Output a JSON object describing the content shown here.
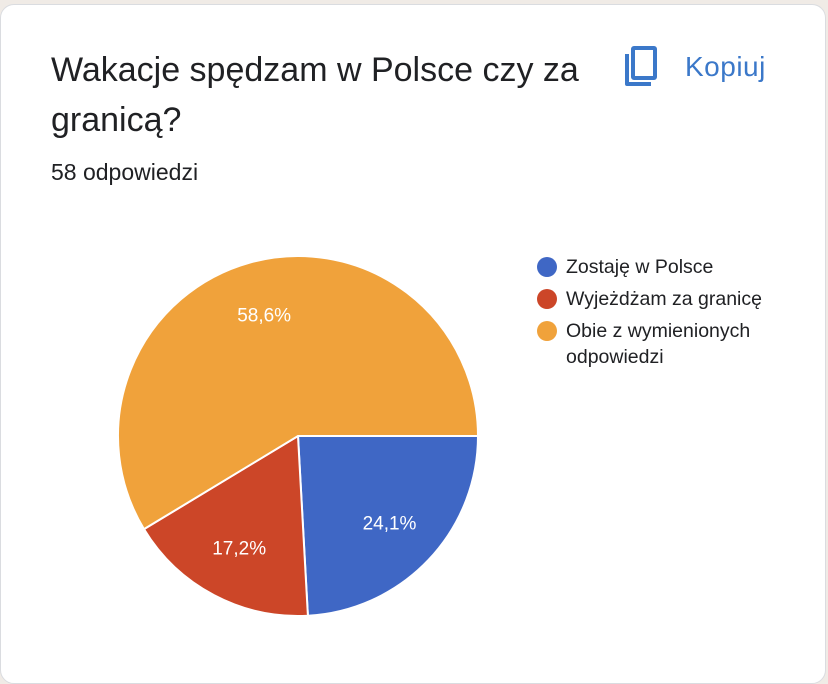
{
  "question": {
    "title": "Wakacje spędzam w Polsce czy za granicą?",
    "response_count": "58 odpowiedzi"
  },
  "toolbar": {
    "copy_label": "Kopiuj",
    "copy_icon": "copy-icon"
  },
  "chart_data": {
    "type": "pie",
    "categories": [
      "Zostaję w Polsce",
      "Wyjeżdżam za granicę",
      "Obie z wymienionych odpowiedzi"
    ],
    "values": [
      24.1,
      17.2,
      58.6
    ],
    "labels": [
      "24,1%",
      "17,2%",
      "58,6%"
    ],
    "colors": [
      "#3f67c5",
      "#cc4628",
      "#f0a23b"
    ],
    "legend_position": "right"
  }
}
